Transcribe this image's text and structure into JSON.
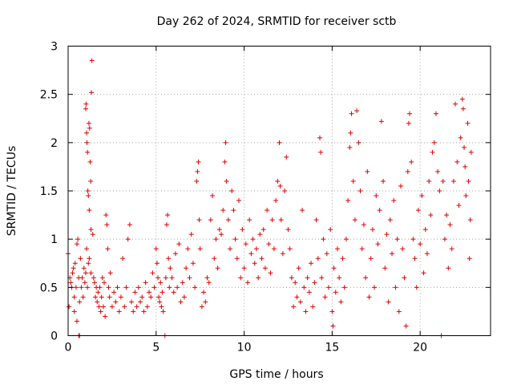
{
  "chart_data": {
    "type": "scatter",
    "title": "Day 262 of 2024, SRMTID for receiver sctb",
    "xlabel": "GPS time / hours",
    "ylabel": "SRMTID / TECUs",
    "xlim": [
      0,
      24
    ],
    "ylim": [
      0,
      3
    ],
    "xticks": [
      0,
      5,
      10,
      15,
      20
    ],
    "xtick_labels": [
      "0",
      "5",
      "10",
      "15",
      "20"
    ],
    "yticks": [
      0,
      0.5,
      1,
      1.5,
      2,
      2.5,
      3
    ],
    "ytick_labels": [
      "0",
      "0.5",
      "1",
      "1.5",
      "2",
      "2.5",
      "3"
    ],
    "grid": true,
    "marker": "+",
    "color": "#e00000",
    "points": [
      [
        0.0,
        0.85
      ],
      [
        0.05,
        0.3
      ],
      [
        0.1,
        0.6
      ],
      [
        0.15,
        0.55
      ],
      [
        0.2,
        0.5
      ],
      [
        0.25,
        0.65
      ],
      [
        0.3,
        0.7
      ],
      [
        0.35,
        0.4
      ],
      [
        0.4,
        0.75
      ],
      [
        0.45,
        0.5
      ],
      [
        0.5,
        0.95
      ],
      [
        0.55,
        1.0
      ],
      [
        0.6,
        0.6
      ],
      [
        0.65,
        0.35
      ],
      [
        0.7,
        0.8
      ],
      [
        0.75,
        0.5
      ],
      [
        0.8,
        0.6
      ],
      [
        0.85,
        0.4
      ],
      [
        0.9,
        0.7
      ],
      [
        0.95,
        0.55
      ],
      [
        1.0,
        0.65
      ],
      [
        1.05,
        0.9
      ],
      [
        1.1,
        0.5
      ],
      [
        1.15,
        0.75
      ],
      [
        1.2,
        0.8
      ],
      [
        1.3,
        0.65
      ],
      [
        0.6,
        0.0
      ],
      [
        0.65,
        0.0
      ],
      [
        0.35,
        0.25
      ],
      [
        0.5,
        0.15
      ],
      [
        1.0,
        2.35
      ],
      [
        1.02,
        2.4
      ],
      [
        1.05,
        2.1
      ],
      [
        1.07,
        2.0
      ],
      [
        1.1,
        1.9
      ],
      [
        1.12,
        1.5
      ],
      [
        1.15,
        1.45
      ],
      [
        1.2,
        1.3
      ],
      [
        1.18,
        2.2
      ],
      [
        1.22,
        2.15
      ],
      [
        1.25,
        1.8
      ],
      [
        1.28,
        1.6
      ],
      [
        1.3,
        1.1
      ],
      [
        1.35,
        2.85
      ],
      [
        1.32,
        2.52
      ],
      [
        1.4,
        1.05
      ],
      [
        1.45,
        0.6
      ],
      [
        1.5,
        0.55
      ],
      [
        1.55,
        0.4
      ],
      [
        1.6,
        0.5
      ],
      [
        1.65,
        0.35
      ],
      [
        1.7,
        0.45
      ],
      [
        1.75,
        0.3
      ],
      [
        1.8,
        0.5
      ],
      [
        1.85,
        0.25
      ],
      [
        1.9,
        0.4
      ],
      [
        1.95,
        0.6
      ],
      [
        2.0,
        0.3
      ],
      [
        2.05,
        0.55
      ],
      [
        2.1,
        0.2
      ],
      [
        2.15,
        1.25
      ],
      [
        2.2,
        1.15
      ],
      [
        2.25,
        0.9
      ],
      [
        2.3,
        0.5
      ],
      [
        2.35,
        0.4
      ],
      [
        2.4,
        0.65
      ],
      [
        2.5,
        0.3
      ],
      [
        2.6,
        0.45
      ],
      [
        2.7,
        0.35
      ],
      [
        2.8,
        0.5
      ],
      [
        2.9,
        0.25
      ],
      [
        3.0,
        0.4
      ],
      [
        3.1,
        0.8
      ],
      [
        3.2,
        0.3
      ],
      [
        3.3,
        0.5
      ],
      [
        3.4,
        1.0
      ],
      [
        3.5,
        1.15
      ],
      [
        3.6,
        0.35
      ],
      [
        3.7,
        0.25
      ],
      [
        3.8,
        0.45
      ],
      [
        3.9,
        0.3
      ],
      [
        4.0,
        0.5
      ],
      [
        4.1,
        0.35
      ],
      [
        4.2,
        0.4
      ],
      [
        4.3,
        0.25
      ],
      [
        4.4,
        0.55
      ],
      [
        4.5,
        0.3
      ],
      [
        4.6,
        0.45
      ],
      [
        4.7,
        0.4
      ],
      [
        4.8,
        0.65
      ],
      [
        4.9,
        0.5
      ],
      [
        5.0,
        0.9
      ],
      [
        5.05,
        0.75
      ],
      [
        5.1,
        0.6
      ],
      [
        5.15,
        0.4
      ],
      [
        5.2,
        0.35
      ],
      [
        5.25,
        0.55
      ],
      [
        5.3,
        0.3
      ],
      [
        5.35,
        0.45
      ],
      [
        5.4,
        0.25
      ],
      [
        5.5,
        0.0
      ],
      [
        5.55,
        0.6
      ],
      [
        5.6,
        1.15
      ],
      [
        5.65,
        1.25
      ],
      [
        5.7,
        0.8
      ],
      [
        5.75,
        0.5
      ],
      [
        5.8,
        0.7
      ],
      [
        5.9,
        0.6
      ],
      [
        6.0,
        0.45
      ],
      [
        6.1,
        0.85
      ],
      [
        6.2,
        0.5
      ],
      [
        6.3,
        0.95
      ],
      [
        6.4,
        0.35
      ],
      [
        6.5,
        0.55
      ],
      [
        6.6,
        0.4
      ],
      [
        6.7,
        0.7
      ],
      [
        6.8,
        0.9
      ],
      [
        6.9,
        0.6
      ],
      [
        7.0,
        1.05
      ],
      [
        7.1,
        0.75
      ],
      [
        7.2,
        0.5
      ],
      [
        7.3,
        1.6
      ],
      [
        7.35,
        1.7
      ],
      [
        7.4,
        1.8
      ],
      [
        7.45,
        1.2
      ],
      [
        7.5,
        0.9
      ],
      [
        7.6,
        0.3
      ],
      [
        7.7,
        0.45
      ],
      [
        7.8,
        0.35
      ],
      [
        7.9,
        0.6
      ],
      [
        8.0,
        0.55
      ],
      [
        8.1,
        1.2
      ],
      [
        8.2,
        1.45
      ],
      [
        8.3,
        0.8
      ],
      [
        8.4,
        1.0
      ],
      [
        8.5,
        0.7
      ],
      [
        8.6,
        1.1
      ],
      [
        8.7,
        1.05
      ],
      [
        8.8,
        1.3
      ],
      [
        8.9,
        1.8
      ],
      [
        8.95,
        2.0
      ],
      [
        9.0,
        1.6
      ],
      [
        9.1,
        1.2
      ],
      [
        9.2,
        0.9
      ],
      [
        9.3,
        1.5
      ],
      [
        9.4,
        1.3
      ],
      [
        9.5,
        1.0
      ],
      [
        9.6,
        0.8
      ],
      [
        9.7,
        1.4
      ],
      [
        9.8,
        0.6
      ],
      [
        9.9,
        1.1
      ],
      [
        10.0,
        0.7
      ],
      [
        10.1,
        0.95
      ],
      [
        10.2,
        0.55
      ],
      [
        10.3,
        1.2
      ],
      [
        10.4,
        0.85
      ],
      [
        10.5,
        1.0
      ],
      [
        10.6,
        0.75
      ],
      [
        10.7,
        0.9
      ],
      [
        10.8,
        0.6
      ],
      [
        10.9,
        1.05
      ],
      [
        11.0,
        0.8
      ],
      [
        11.1,
        1.1
      ],
      [
        11.2,
        0.7
      ],
      [
        11.3,
        1.3
      ],
      [
        11.4,
        0.95
      ],
      [
        11.5,
        0.65
      ],
      [
        11.6,
        1.2
      ],
      [
        11.7,
        0.9
      ],
      [
        11.8,
        1.4
      ],
      [
        11.9,
        1.6
      ],
      [
        12.0,
        2.0
      ],
      [
        12.05,
        1.55
      ],
      [
        12.1,
        1.2
      ],
      [
        12.2,
        0.85
      ],
      [
        12.3,
        1.5
      ],
      [
        12.4,
        1.85
      ],
      [
        12.5,
        1.1
      ],
      [
        12.6,
        0.9
      ],
      [
        12.7,
        0.6
      ],
      [
        12.8,
        0.3
      ],
      [
        12.9,
        0.55
      ],
      [
        13.0,
        0.4
      ],
      [
        13.1,
        0.7
      ],
      [
        13.2,
        0.35
      ],
      [
        13.3,
        1.3
      ],
      [
        13.4,
        0.5
      ],
      [
        13.5,
        0.25
      ],
      [
        13.6,
        0.6
      ],
      [
        13.7,
        0.45
      ],
      [
        13.8,
        0.75
      ],
      [
        13.9,
        0.3
      ],
      [
        14.0,
        0.55
      ],
      [
        14.1,
        1.2
      ],
      [
        14.2,
        0.8
      ],
      [
        14.3,
        2.05
      ],
      [
        14.35,
        1.9
      ],
      [
        14.4,
        0.6
      ],
      [
        14.5,
        1.0
      ],
      [
        14.6,
        0.4
      ],
      [
        14.7,
        0.85
      ],
      [
        14.8,
        0.5
      ],
      [
        14.9,
        1.1
      ],
      [
        15.0,
        0.25
      ],
      [
        15.05,
        0.1
      ],
      [
        15.1,
        0.7
      ],
      [
        15.2,
        0.45
      ],
      [
        15.3,
        0.9
      ],
      [
        15.4,
        0.6
      ],
      [
        15.5,
        0.35
      ],
      [
        15.6,
        0.8
      ],
      [
        15.7,
        0.5
      ],
      [
        15.8,
        1.0
      ],
      [
        15.9,
        1.4
      ],
      [
        16.0,
        1.95
      ],
      [
        16.05,
        2.1
      ],
      [
        16.1,
        2.3
      ],
      [
        16.2,
        1.6
      ],
      [
        16.3,
        1.2
      ],
      [
        16.4,
        2.33
      ],
      [
        16.5,
        2.0
      ],
      [
        16.6,
        1.5
      ],
      [
        16.7,
        0.9
      ],
      [
        16.8,
        1.15
      ],
      [
        16.9,
        0.6
      ],
      [
        17.0,
        1.7
      ],
      [
        17.1,
        0.4
      ],
      [
        17.2,
        0.8
      ],
      [
        17.3,
        1.1
      ],
      [
        17.4,
        0.5
      ],
      [
        17.5,
        1.45
      ],
      [
        17.6,
        0.95
      ],
      [
        17.7,
        1.3
      ],
      [
        17.8,
        2.22
      ],
      [
        17.9,
        1.6
      ],
      [
        18.0,
        0.7
      ],
      [
        18.1,
        1.05
      ],
      [
        18.2,
        0.35
      ],
      [
        18.3,
        1.2
      ],
      [
        18.4,
        0.85
      ],
      [
        18.5,
        1.4
      ],
      [
        18.6,
        0.5
      ],
      [
        18.7,
        1.0
      ],
      [
        18.8,
        0.25
      ],
      [
        18.9,
        1.55
      ],
      [
        19.0,
        0.9
      ],
      [
        19.1,
        0.6
      ],
      [
        19.2,
        0.1
      ],
      [
        19.3,
        1.7
      ],
      [
        19.35,
        2.2
      ],
      [
        19.4,
        2.3
      ],
      [
        19.5,
        1.8
      ],
      [
        19.6,
        1.0
      ],
      [
        19.7,
        0.8
      ],
      [
        19.8,
        0.5
      ],
      [
        19.9,
        1.3
      ],
      [
        20.0,
        0.95
      ],
      [
        20.1,
        1.45
      ],
      [
        20.2,
        0.65
      ],
      [
        20.3,
        1.1
      ],
      [
        20.4,
        0.85
      ],
      [
        20.5,
        1.6
      ],
      [
        20.6,
        1.25
      ],
      [
        20.7,
        1.9
      ],
      [
        20.8,
        2.0
      ],
      [
        20.9,
        2.3
      ],
      [
        21.0,
        1.7
      ],
      [
        21.1,
        1.5
      ],
      [
        21.2,
        0.0
      ],
      [
        21.3,
        1.6
      ],
      [
        21.4,
        1.0
      ],
      [
        21.5,
        1.25
      ],
      [
        21.6,
        0.7
      ],
      [
        21.7,
        1.15
      ],
      [
        21.8,
        0.9
      ],
      [
        21.9,
        1.6
      ],
      [
        22.0,
        2.4
      ],
      [
        22.1,
        1.8
      ],
      [
        22.2,
        1.35
      ],
      [
        22.3,
        2.05
      ],
      [
        22.4,
        2.45
      ],
      [
        22.45,
        2.35
      ],
      [
        22.5,
        1.95
      ],
      [
        22.55,
        1.75
      ],
      [
        22.6,
        1.45
      ],
      [
        22.7,
        2.2
      ],
      [
        22.75,
        1.6
      ],
      [
        22.8,
        0.8
      ],
      [
        22.85,
        1.2
      ],
      [
        22.9,
        1.9
      ]
    ]
  }
}
